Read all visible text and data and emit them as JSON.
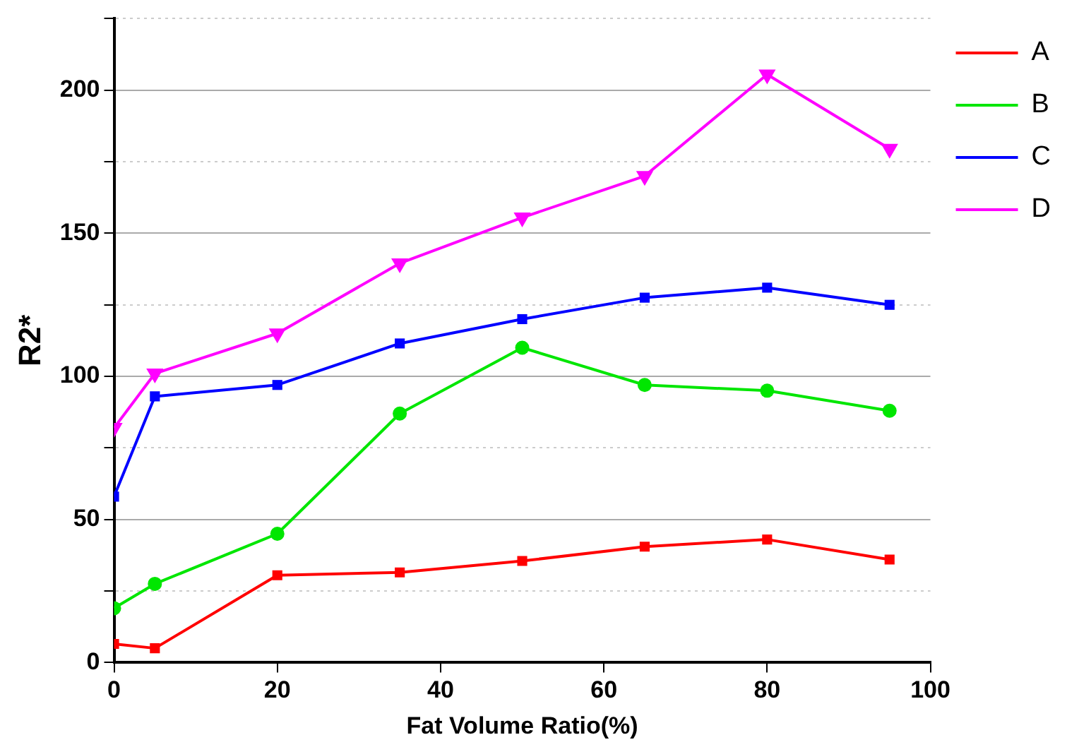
{
  "chart_data": {
    "type": "line",
    "xlabel": "Fat Volume Ratio(%)",
    "ylabel": "R2*",
    "x": [
      0,
      5,
      20,
      35,
      50,
      65,
      80,
      95
    ],
    "xlim": [
      0,
      100
    ],
    "xticks": [
      0,
      20,
      40,
      60,
      80,
      100
    ],
    "ylim": [
      0,
      225
    ],
    "yticks": [
      0,
      {
        "value": 25,
        "label": null
      },
      50,
      {
        "value": 75,
        "label": null
      },
      100,
      {
        "value": 125,
        "label": null
      },
      150,
      {
        "value": 175,
        "label": null
      },
      200,
      {
        "value": 225,
        "label": null
      }
    ],
    "grid": "y",
    "legend": "top right",
    "line_style": "solid",
    "series": [
      {
        "name": "A",
        "color": "#ff0000",
        "marker": "square",
        "values": [
          6.5,
          5,
          30.5,
          31.5,
          35.5,
          40.5,
          43,
          36
        ]
      },
      {
        "name": "B",
        "color": "#00e600",
        "marker": "circle",
        "values": [
          19,
          27.5,
          45,
          87,
          110,
          97,
          95,
          88
        ]
      },
      {
        "name": "C",
        "color": "#0000ff",
        "marker": "square",
        "values": [
          58,
          93,
          97,
          111.5,
          120,
          127.5,
          131,
          125
        ]
      },
      {
        "name": "D",
        "color": "#ff00ff",
        "marker": "triangle",
        "values": [
          82,
          101,
          115,
          139.5,
          155.5,
          170,
          205.5,
          179.5
        ]
      }
    ]
  }
}
